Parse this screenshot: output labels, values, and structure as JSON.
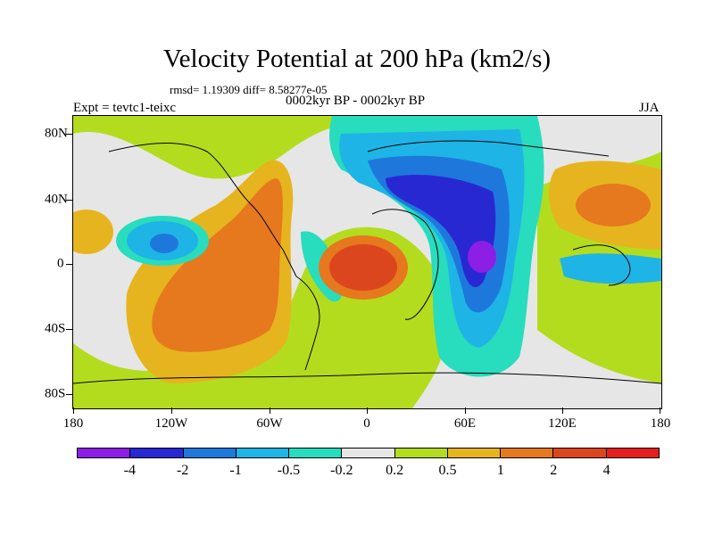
{
  "title": "Velocity Potential at 200 hPa (km2/s)",
  "stats": "rmsd= 1.19309 diff= 8.58277e-05",
  "experiment": "Expt = tevtc1-teixc",
  "period": "0002kyr BP - 0002kyr BP",
  "season": "JJA",
  "lat_labels": [
    "80N",
    "40N",
    "0",
    "40S",
    "80S"
  ],
  "lon_labels": [
    "180",
    "120W",
    "60W",
    "0",
    "60E",
    "120E",
    "180"
  ],
  "colorbar": {
    "labels": [
      "-4",
      "-2",
      "-1",
      "-0.5",
      "-0.2",
      "0.2",
      "0.5",
      "1",
      "2",
      "4"
    ],
    "colors": [
      "#8c1ee6",
      "#2828d2",
      "#1e78dc",
      "#1eb4e6",
      "#28dcbe",
      "#e6e6e6",
      "#b4dc1e",
      "#e6b41e",
      "#e6781e",
      "#dc461e",
      "#e61e1e"
    ]
  }
}
